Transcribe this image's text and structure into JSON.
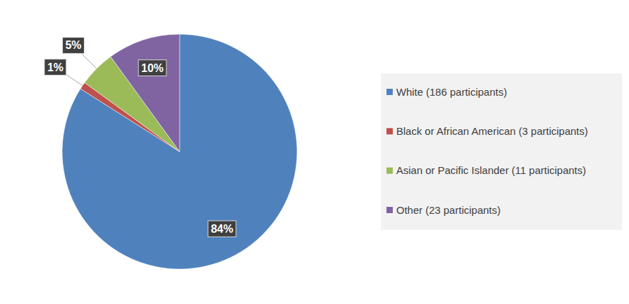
{
  "chart_data": {
    "type": "pie",
    "categories": [
      "White (186 participants)",
      "Black or African American (3 participants)",
      "Asian or Pacific Islander (11 participants)",
      "Other (23 participants)"
    ],
    "values": [
      84,
      1,
      5,
      10
    ],
    "value_labels": [
      "84%",
      "1%",
      "5%",
      "10%"
    ],
    "colors": [
      "#4f81bd",
      "#c0504d",
      "#9bbb59",
      "#8064a2"
    ],
    "data_labels": true,
    "legend": "right"
  }
}
